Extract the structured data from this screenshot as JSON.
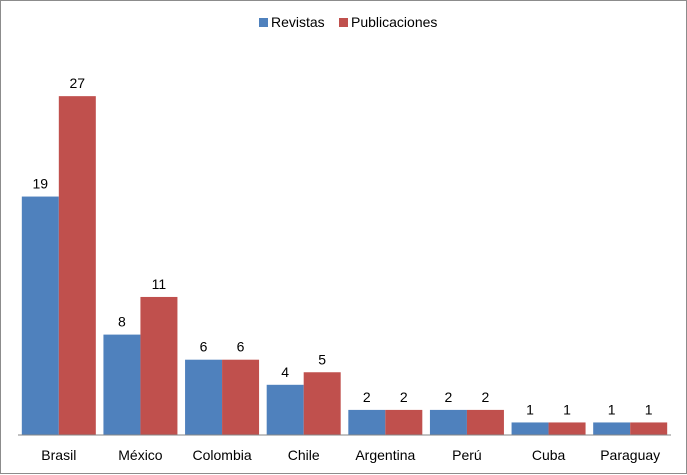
{
  "chart_data": {
    "type": "bar",
    "categories": [
      "Brasil",
      "México",
      "Colombia",
      "Chile",
      "Argentina",
      "Perú",
      "Cuba",
      "Paraguay"
    ],
    "series": [
      {
        "name": "Revistas",
        "values": [
          19,
          8,
          6,
          4,
          2,
          2,
          1,
          1
        ],
        "color": "#4f81bd"
      },
      {
        "name": "Publicaciones",
        "values": [
          27,
          11,
          6,
          5,
          2,
          2,
          1,
          1
        ],
        "color": "#c0504d"
      }
    ],
    "ylim": [
      0,
      29
    ],
    "grid": false,
    "legend_position": "top-center",
    "data_labels": true
  }
}
